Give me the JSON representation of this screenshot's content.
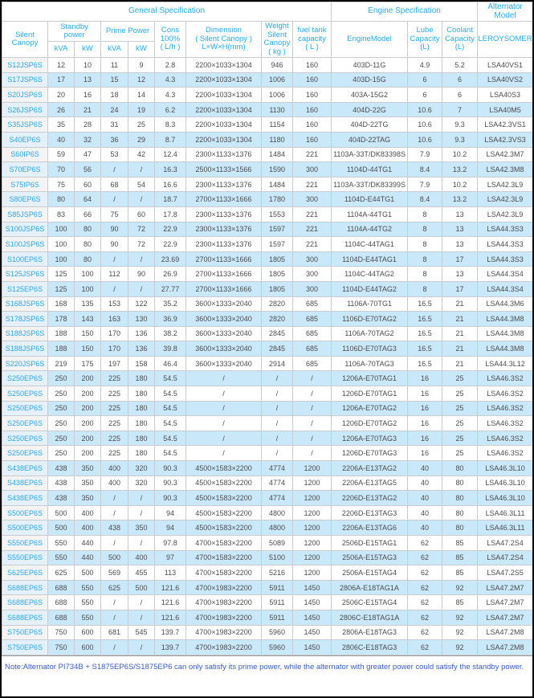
{
  "header": {
    "band_general": "General Specification",
    "band_engine": "Engine Specification",
    "band_alternator": "Alternator Model",
    "silent_canopy": "Silent Canopy",
    "standby_power": "Standby\npower",
    "prime_power": "Prime Power",
    "kva1": "kVA",
    "kw1": "kW",
    "kva2": "kVA",
    "kw2": "kW",
    "cons": "Cons\n100%\n( L/h )",
    "dimension": "Dimension\n( Silent Canopy )\nL×W×H(mm)",
    "weight": "Weight\nSilent\nCanopy\n( kg )",
    "fuel_tank": "fuel tank\ncapacity\n( L )",
    "engine_model": "EngineModel",
    "lube": "Lube\nCapacity\n(L)",
    "coolant": "Coolant\nCapacity\n(L)",
    "leroysomer": "LEROYSOMER"
  },
  "table": {
    "rows": [
      [
        "S12JSP6S",
        "12",
        "10",
        "11",
        "9",
        "2.8",
        "2200×1033×1304",
        "946",
        "160",
        "403D-11G",
        "4.9",
        "5.2",
        "LSA40VS1"
      ],
      [
        "S17JSP6S",
        "17",
        "13",
        "15",
        "12",
        "4.3",
        "2200×1033×1304",
        "1006",
        "160",
        "403D-15G",
        "6",
        "6",
        "LSA40VS2"
      ],
      [
        "S20JSP6S",
        "20",
        "16",
        "18",
        "14",
        "4.3",
        "2200×1033×1304",
        "1006",
        "160",
        "403A-15G2",
        "6",
        "6",
        "LSA40S3"
      ],
      [
        "S26JSP6S",
        "26",
        "21",
        "24",
        "19",
        "6.2",
        "2200×1033×1304",
        "1130",
        "160",
        "404D-22G",
        "10.6",
        "7",
        "LSA40M5"
      ],
      [
        "S35JSP6S",
        "35",
        "28",
        "31",
        "25",
        "8.3",
        "2200×1033×1304",
        "1154",
        "160",
        "404D-22TG",
        "10.6",
        "9.3",
        "LSA42.3VS1"
      ],
      [
        "S40EP6S",
        "40",
        "32",
        "36",
        "29",
        "8.7",
        "2200×1033×1304",
        "1180",
        "160",
        "404D-22TAG",
        "10.6",
        "9.3",
        "LSA42.3VS3"
      ],
      [
        "S60IP6S",
        "59",
        "47",
        "53",
        "42",
        "12.4",
        "2300×1133×1376",
        "1484",
        "221",
        "1103A-33T/DK83398S",
        "7.9",
        "10.2",
        "LSA42.3M7"
      ],
      [
        "S70EP6S",
        "70",
        "56",
        "/",
        "/",
        "16.3",
        "2500×1133×1566",
        "1590",
        "300",
        "1104D-44TG1",
        "8.4",
        "13.2",
        "LSA42.3M8"
      ],
      [
        "S75IP6S",
        "75",
        "60",
        "68",
        "54",
        "16.6",
        "2300×1133×1376",
        "1484",
        "221",
        "1103A-33T/DK83399S",
        "7.9",
        "10.2",
        "LSA42.3L9"
      ],
      [
        "S80EP6S",
        "80",
        "64",
        "/",
        "/",
        "18.7",
        "2700×1133×1666",
        "1780",
        "300",
        "1104D-E44TG1",
        "8.4",
        "13.2",
        "LSA42.3L9"
      ],
      [
        "S85JSP6S",
        "83",
        "66",
        "75",
        "60",
        "17.8",
        "2300×1133×1376",
        "1553",
        "221",
        "1104A-44TG1",
        "8",
        "13",
        "LSA42.3L9"
      ],
      [
        "S100JSP6S",
        "100",
        "80",
        "90",
        "72",
        "22.9",
        "2300×1133×1376",
        "1597",
        "221",
        "1104A-44TG2",
        "8",
        "13",
        "LSA44.3S3"
      ],
      [
        "S100JSP6S",
        "100",
        "80",
        "90",
        "72",
        "22.9",
        "2300×1133×1376",
        "1597",
        "221",
        "1104C-44TAG1",
        "8",
        "13",
        "LSA44.3S3"
      ],
      [
        "S100EP6S",
        "100",
        "80",
        "/",
        "/",
        "23.69",
        "2700×1133×1666",
        "1805",
        "300",
        "1104D-E44TAG1",
        "8",
        "17",
        "LSA44.3S3"
      ],
      [
        "S125JSP6S",
        "125",
        "100",
        "112",
        "90",
        "26.9",
        "2700×1133×1666",
        "1805",
        "300",
        "1104C-44TAG2",
        "8",
        "13",
        "LSA44.3S4"
      ],
      [
        "S125EP6S",
        "125",
        "100",
        "/",
        "/",
        "27.77",
        "2700×1133×1666",
        "1805",
        "300",
        "1104D-E44TAG2",
        "8",
        "17",
        "LSA44.3S4"
      ],
      [
        "S168JSP6S",
        "168",
        "135",
        "153",
        "122",
        "35.2",
        "3600×1333×2040",
        "2820",
        "685",
        "1106A-70TG1",
        "16.5",
        "21",
        "LSA44.3M6"
      ],
      [
        "S178JSP6S",
        "178",
        "143",
        "163",
        "130",
        "36.9",
        "3600×1333×2040",
        "2820",
        "685",
        "1106D-E70TAG2",
        "16.5",
        "21",
        "LSA44.3M8"
      ],
      [
        "S188JSP6S",
        "188",
        "150",
        "170",
        "136",
        "38.2",
        "3600×1333×2040",
        "2845",
        "685",
        "1106A-70TAG2",
        "16.5",
        "21",
        "LSA44.3M8"
      ],
      [
        "S188JSP6S",
        "188",
        "150",
        "170",
        "136",
        "39.8",
        "3600×1333×2040",
        "2845",
        "685",
        "1106D-E70TAG3",
        "16.5",
        "21",
        "LSA44.3M8"
      ],
      [
        "S220JSP6S",
        "219",
        "175",
        "197",
        "158",
        "46.4",
        "3600×1333×2040",
        "2914",
        "685",
        "1106A-70TAG3",
        "16.5",
        "21",
        "LSA44.3L12"
      ],
      [
        "S250EP6S",
        "250",
        "200",
        "225",
        "180",
        "54.5",
        "/",
        "/",
        "/",
        "1206A-E70TAG1",
        "16",
        "25",
        "LSA46.3S2"
      ],
      [
        "S250EP6S",
        "250",
        "200",
        "225",
        "180",
        "54.5",
        "/",
        "/",
        "/",
        "1206D-E70TAG1",
        "16",
        "25",
        "LSA46.3S2"
      ],
      [
        "S250EP6S",
        "250",
        "200",
        "225",
        "180",
        "54.5",
        "/",
        "/",
        "/",
        "1206A-E70TAG2",
        "16",
        "25",
        "LSA46.3S2"
      ],
      [
        "S250EP6S",
        "250",
        "200",
        "225",
        "180",
        "54.5",
        "/",
        "/",
        "/",
        "1206D-E70TAG2",
        "16",
        "25",
        "LSA46.3S2"
      ],
      [
        "S250EP6S",
        "250",
        "200",
        "225",
        "180",
        "54.5",
        "/",
        "/",
        "/",
        "1206A-E70TAG3",
        "16",
        "25",
        "LSA46.3S2"
      ],
      [
        "S250EP6S",
        "250",
        "200",
        "225",
        "180",
        "54.5",
        "/",
        "/",
        "/",
        "1206D-E70TAG3",
        "16",
        "25",
        "LSA46.3S2"
      ],
      [
        "S438EP6S",
        "438",
        "350",
        "400",
        "320",
        "90.3",
        "4500×1583×2200",
        "4774",
        "1200",
        "2206A-E13TAG2",
        "40",
        "80",
        "LSA46.3L10"
      ],
      [
        "S438EP6S",
        "438",
        "350",
        "400",
        "320",
        "90.3",
        "4500×1583×2200",
        "4774",
        "1200",
        "2206A-E13TAG5",
        "40",
        "80",
        "LSA46.3L10"
      ],
      [
        "S438EP6S",
        "438",
        "350",
        "/",
        "/",
        "90.3",
        "4500×1583×2200",
        "4774",
        "1200",
        "2206D-E13TAG2",
        "40",
        "80",
        "LSA46.3L10"
      ],
      [
        "S500EP6S",
        "500",
        "400",
        "/",
        "/",
        "94",
        "4500×1583×2200",
        "4800",
        "1200",
        "2206D-E13TAG3",
        "40",
        "80",
        "LSA46.3L11"
      ],
      [
        "S500EP6S",
        "500",
        "400",
        "438",
        "350",
        "94",
        "4500×1583×2200",
        "4800",
        "1200",
        "2206A-E13TAG6",
        "40",
        "80",
        "LSA46.3L11"
      ],
      [
        "S550EP6S",
        "550",
        "440",
        "/",
        "/",
        "97.8",
        "4700×1583×2200",
        "5089",
        "1200",
        "2506D-E15TAG1",
        "62",
        "85",
        "LSA47.2S4"
      ],
      [
        "S550EP6S",
        "550",
        "440",
        "500",
        "400",
        "97",
        "4700×1583×2200",
        "5100",
        "1200",
        "2506A-E15TAG3",
        "62",
        "85",
        "LSA47.2S4"
      ],
      [
        "S625EP6S",
        "625",
        "500",
        "569",
        "455",
        "113",
        "4700×1583×2200",
        "5216",
        "1200",
        "2506A-E15TAG4",
        "62",
        "85",
        "LSA47.2S5"
      ],
      [
        "S688EP6S",
        "688",
        "550",
        "625",
        "500",
        "121.6",
        "4700×1983×2200",
        "5911",
        "1450",
        "2806A-E18TAG1A",
        "62",
        "92",
        "LSA47.2M7"
      ],
      [
        "S688EP6S",
        "688",
        "550",
        "/",
        "/",
        "121.6",
        "4700×1983×2200",
        "5911",
        "1450",
        "2506C-E15TAG4",
        "62",
        "85",
        "LSA47.2M7"
      ],
      [
        "S688EP6S",
        "688",
        "550",
        "/",
        "/",
        "121.6",
        "4700×1983×2200",
        "5911",
        "1450",
        "2806C-E18TAG1A",
        "62",
        "92",
        "LSA47.2M7"
      ],
      [
        "S750EP6S",
        "750",
        "600",
        "681",
        "545",
        "139.7",
        "4700×1983×2200",
        "5960",
        "1450",
        "2806A-E18TAG3",
        "62",
        "92",
        "LSA47.2M8"
      ],
      [
        "S750EP6S",
        "750",
        "600",
        "/",
        "/",
        "139.7",
        "4700×1983×2200",
        "5960",
        "1450",
        "2806C-E18TAG3",
        "62",
        "92",
        "LSA47.2M8"
      ]
    ]
  },
  "note": "Note:Alternator PI734B + S1875EP6S/S1875EP6 can only satisfy its prime power, while the alternator with greater power could satisfy the standby power.",
  "colors": {
    "accent": "#29aae3",
    "stripe": "#c9e8fa",
    "model_text": "#2ba6e0",
    "data_text": "#4d4d4d",
    "note_text": "#3a5bb8",
    "border": "#c9ccce"
  }
}
